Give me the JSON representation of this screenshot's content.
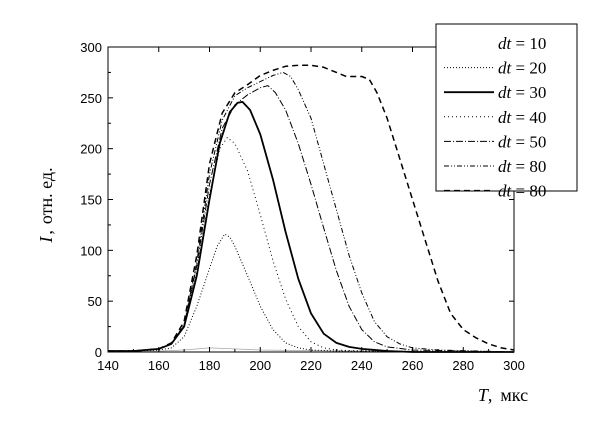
{
  "chart_data": {
    "type": "line",
    "xlabel": {
      "symbol": "T",
      "unit": "мкс"
    },
    "ylabel": {
      "symbol": "I",
      "unit": "отн. ед."
    },
    "xlim": [
      140,
      300
    ],
    "ylim": [
      0,
      300
    ],
    "xticks": [
      140,
      160,
      180,
      200,
      220,
      240,
      260,
      280,
      300
    ],
    "yticks": [
      0,
      50,
      100,
      150,
      200,
      250,
      300
    ],
    "legend_position": "top-right",
    "series": [
      {
        "name": "dt = 10",
        "legend": {
          "var": "dt",
          "text": " = 10"
        },
        "style": "none",
        "points": [
          [
            140,
            1
          ],
          [
            160,
            1
          ],
          [
            170,
            2
          ],
          [
            180,
            4
          ],
          [
            200,
            2
          ],
          [
            230,
            1
          ],
          [
            300,
            0
          ]
        ]
      },
      {
        "name": "dt = 20",
        "legend": {
          "var": "dt",
          "text": " = 20"
        },
        "style": "dotted",
        "points": [
          [
            140,
            1
          ],
          [
            150,
            1
          ],
          [
            160,
            2
          ],
          [
            165,
            4
          ],
          [
            170,
            15
          ],
          [
            175,
            45
          ],
          [
            180,
            82
          ],
          [
            183,
            104
          ],
          [
            186,
            116
          ],
          [
            188,
            113
          ],
          [
            190,
            104
          ],
          [
            195,
            75
          ],
          [
            200,
            45
          ],
          [
            205,
            22
          ],
          [
            210,
            9
          ],
          [
            215,
            4
          ],
          [
            220,
            2
          ],
          [
            230,
            1
          ],
          [
            300,
            0
          ]
        ]
      },
      {
        "name": "dt = 30",
        "legend": {
          "var": "dt",
          "text": " = 30"
        },
        "style": "solid",
        "points": [
          [
            140,
            1
          ],
          [
            150,
            1
          ],
          [
            160,
            3
          ],
          [
            165,
            8
          ],
          [
            170,
            25
          ],
          [
            175,
            75
          ],
          [
            180,
            150
          ],
          [
            184,
            205
          ],
          [
            188,
            236
          ],
          [
            191,
            245
          ],
          [
            193,
            246
          ],
          [
            196,
            238
          ],
          [
            200,
            214
          ],
          [
            205,
            170
          ],
          [
            210,
            118
          ],
          [
            215,
            72
          ],
          [
            220,
            38
          ],
          [
            225,
            18
          ],
          [
            230,
            9
          ],
          [
            235,
            5
          ],
          [
            240,
            3
          ],
          [
            250,
            1
          ],
          [
            260,
            0
          ],
          [
            300,
            0
          ]
        ]
      },
      {
        "name": "dt = 40",
        "legend": {
          "var": "dt",
          "text": " = 40"
        },
        "style": "dotted-sparse",
        "points": [
          [
            140,
            1
          ],
          [
            150,
            1
          ],
          [
            160,
            3
          ],
          [
            165,
            8
          ],
          [
            170,
            25
          ],
          [
            175,
            80
          ],
          [
            180,
            155
          ],
          [
            184,
            200
          ],
          [
            187,
            211
          ],
          [
            190,
            205
          ],
          [
            195,
            178
          ],
          [
            200,
            135
          ],
          [
            205,
            90
          ],
          [
            210,
            52
          ],
          [
            215,
            25
          ],
          [
            220,
            10
          ],
          [
            225,
            4
          ],
          [
            230,
            2
          ],
          [
            240,
            1
          ],
          [
            300,
            0
          ]
        ]
      },
      {
        "name": "dt = 50",
        "legend": {
          "var": "dt",
          "text": " = 50"
        },
        "style": "dashdot",
        "points": [
          [
            140,
            1
          ],
          [
            150,
            1
          ],
          [
            160,
            3
          ],
          [
            165,
            8
          ],
          [
            170,
            26
          ],
          [
            175,
            85
          ],
          [
            180,
            165
          ],
          [
            185,
            220
          ],
          [
            190,
            243
          ],
          [
            195,
            253
          ],
          [
            200,
            260
          ],
          [
            203,
            262
          ],
          [
            206,
            255
          ],
          [
            210,
            238
          ],
          [
            215,
            205
          ],
          [
            220,
            165
          ],
          [
            225,
            122
          ],
          [
            230,
            80
          ],
          [
            235,
            45
          ],
          [
            240,
            22
          ],
          [
            245,
            10
          ],
          [
            250,
            5
          ],
          [
            260,
            2
          ],
          [
            300,
            0
          ]
        ]
      },
      {
        "name": "dt = 80",
        "legend": {
          "var": "dt",
          "text": " = 80"
        },
        "style": "dashdotdot",
        "points": [
          [
            140,
            1
          ],
          [
            150,
            1
          ],
          [
            160,
            3
          ],
          [
            165,
            8
          ],
          [
            170,
            27
          ],
          [
            175,
            88
          ],
          [
            180,
            175
          ],
          [
            185,
            228
          ],
          [
            190,
            252
          ],
          [
            195,
            260
          ],
          [
            200,
            266
          ],
          [
            205,
            272
          ],
          [
            209,
            275
          ],
          [
            212,
            271
          ],
          [
            215,
            258
          ],
          [
            220,
            230
          ],
          [
            225,
            185
          ],
          [
            230,
            140
          ],
          [
            235,
            95
          ],
          [
            240,
            58
          ],
          [
            245,
            30
          ],
          [
            250,
            15
          ],
          [
            255,
            8
          ],
          [
            260,
            4
          ],
          [
            270,
            2
          ],
          [
            300,
            0
          ]
        ]
      },
      {
        "name": "dt = 80",
        "legend": {
          "var": "dt",
          "text": " = 80"
        },
        "style": "dashed",
        "points": [
          [
            140,
            1
          ],
          [
            150,
            1
          ],
          [
            160,
            3
          ],
          [
            165,
            9
          ],
          [
            170,
            30
          ],
          [
            175,
            95
          ],
          [
            180,
            185
          ],
          [
            185,
            235
          ],
          [
            190,
            255
          ],
          [
            195,
            263
          ],
          [
            200,
            272
          ],
          [
            205,
            277
          ],
          [
            210,
            281
          ],
          [
            215,
            282
          ],
          [
            220,
            282
          ],
          [
            225,
            280
          ],
          [
            230,
            275
          ],
          [
            234,
            271
          ],
          [
            240,
            271
          ],
          [
            243,
            268
          ],
          [
            246,
            255
          ],
          [
            250,
            230
          ],
          [
            255,
            190
          ],
          [
            260,
            150
          ],
          [
            265,
            110
          ],
          [
            270,
            70
          ],
          [
            275,
            38
          ],
          [
            280,
            22
          ],
          [
            285,
            14
          ],
          [
            290,
            8
          ],
          [
            295,
            4
          ],
          [
            300,
            2
          ]
        ]
      }
    ]
  }
}
